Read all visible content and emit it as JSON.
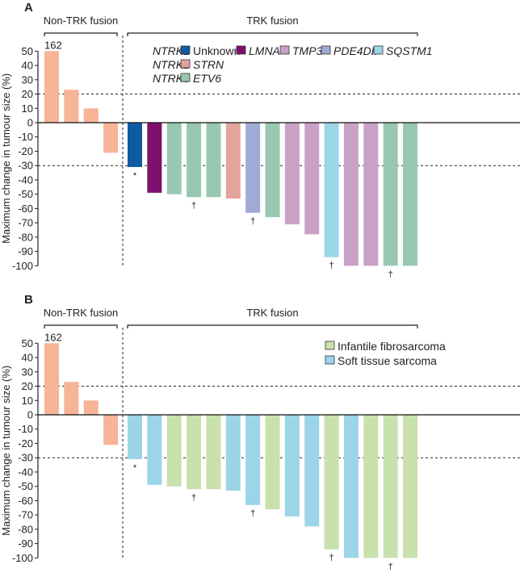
{
  "chart_data": [
    {
      "panel": "A",
      "type": "bar",
      "ylabel": "Maximum change in tumour size (%)",
      "ylim": [
        -100,
        50
      ],
      "yticks": [
        50,
        40,
        30,
        20,
        10,
        0,
        -10,
        -20,
        -30,
        -40,
        -50,
        -60,
        -70,
        -80,
        -90,
        -100
      ],
      "reference_lines": [
        20,
        -30
      ],
      "groups": [
        {
          "label": "Non-TRK fusion",
          "values": [
            162,
            23,
            10,
            -21
          ],
          "categories": [
            "non-TRK",
            "non-TRK",
            "non-TRK",
            "non-TRK"
          ],
          "value_labels": [
            "162",
            "",
            "",
            ""
          ],
          "markers": [
            "",
            "",
            "",
            ""
          ]
        },
        {
          "label": "TRK fusion",
          "values": [
            -31,
            -49,
            -50,
            -52,
            -52,
            -53,
            -63,
            -66,
            -71,
            -78,
            -94,
            -100,
            -100,
            -100,
            -100
          ],
          "categories": [
            "Unknown",
            "LMNA",
            "ETV6",
            "ETV6",
            "ETV6",
            "STRN",
            "PDE4DIP",
            "ETV6",
            "TMP3",
            "TMP3",
            "SQSTM1",
            "TMP3",
            "TMP3",
            "ETV6",
            "ETV6"
          ],
          "markers": [
            "*",
            "",
            "",
            "†",
            "",
            "",
            "†",
            "",
            "",
            "",
            "†",
            "",
            "",
            "†",
            ""
          ]
        }
      ],
      "legend": {
        "placement": "top",
        "rows": [
          {
            "gene": "NTRK1",
            "items": [
              {
                "label": "Unknown",
                "key": "Unknown",
                "italic": false
              },
              {
                "label": "LMNA",
                "key": "LMNA",
                "italic": true
              },
              {
                "label": "TMP3",
                "key": "TMP3",
                "italic": true
              },
              {
                "label": "PDE4DIP",
                "key": "PDE4DIP",
                "italic": true
              },
              {
                "label": "SQSTM1",
                "key": "SQSTM1",
                "italic": true
              }
            ]
          },
          {
            "gene": "NTRK2",
            "items": [
              {
                "label": "STRN",
                "key": "STRN",
                "italic": true
              }
            ]
          },
          {
            "gene": "NTRK3",
            "items": [
              {
                "label": "ETV6",
                "key": "ETV6",
                "italic": true
              }
            ]
          }
        ]
      },
      "colors": {
        "non-TRK": "#f7b497",
        "Unknown": "#0d5ba1",
        "LMNA": "#7e106e",
        "TMP3": "#c9a1c7",
        "PDE4DIP": "#a0aad7",
        "SQSTM1": "#9bd6e8",
        "STRN": "#e2a49d",
        "ETV6": "#98c8b1"
      }
    },
    {
      "panel": "B",
      "type": "bar",
      "ylabel": "Maximum change in tumour size (%)",
      "ylim": [
        -100,
        50
      ],
      "yticks": [
        50,
        40,
        30,
        20,
        10,
        0,
        -10,
        -20,
        -30,
        -40,
        -50,
        -60,
        -70,
        -80,
        -90,
        -100
      ],
      "reference_lines": [
        20,
        -30
      ],
      "groups": [
        {
          "label": "Non-TRK fusion",
          "values": [
            162,
            23,
            10,
            -21
          ],
          "categories": [
            "non-TRK",
            "non-TRK",
            "non-TRK",
            "non-TRK"
          ],
          "value_labels": [
            "162",
            "",
            "",
            ""
          ],
          "markers": [
            "",
            "",
            "",
            ""
          ]
        },
        {
          "label": "TRK fusion",
          "values": [
            -31,
            -49,
            -50,
            -52,
            -52,
            -53,
            -63,
            -66,
            -71,
            -78,
            -94,
            -100,
            -100,
            -100,
            -100
          ],
          "categories": [
            "STS",
            "STS",
            "IF",
            "IF",
            "IF",
            "STS",
            "STS",
            "IF",
            "STS",
            "STS",
            "IF",
            "STS",
            "IF",
            "IF",
            "IF"
          ],
          "markers": [
            "*",
            "",
            "",
            "†",
            "",
            "",
            "†",
            "",
            "",
            "",
            "†",
            "",
            "",
            "†",
            ""
          ]
        }
      ],
      "legend": {
        "placement": "top-right",
        "items": [
          {
            "label": "Infantile fibrosarcoma",
            "key": "IF"
          },
          {
            "label": "Soft tissue sarcoma",
            "key": "STS"
          }
        ]
      },
      "colors": {
        "non-TRK": "#f7b497",
        "IF": "#c8e1ad",
        "STS": "#9bd5e7"
      }
    }
  ]
}
